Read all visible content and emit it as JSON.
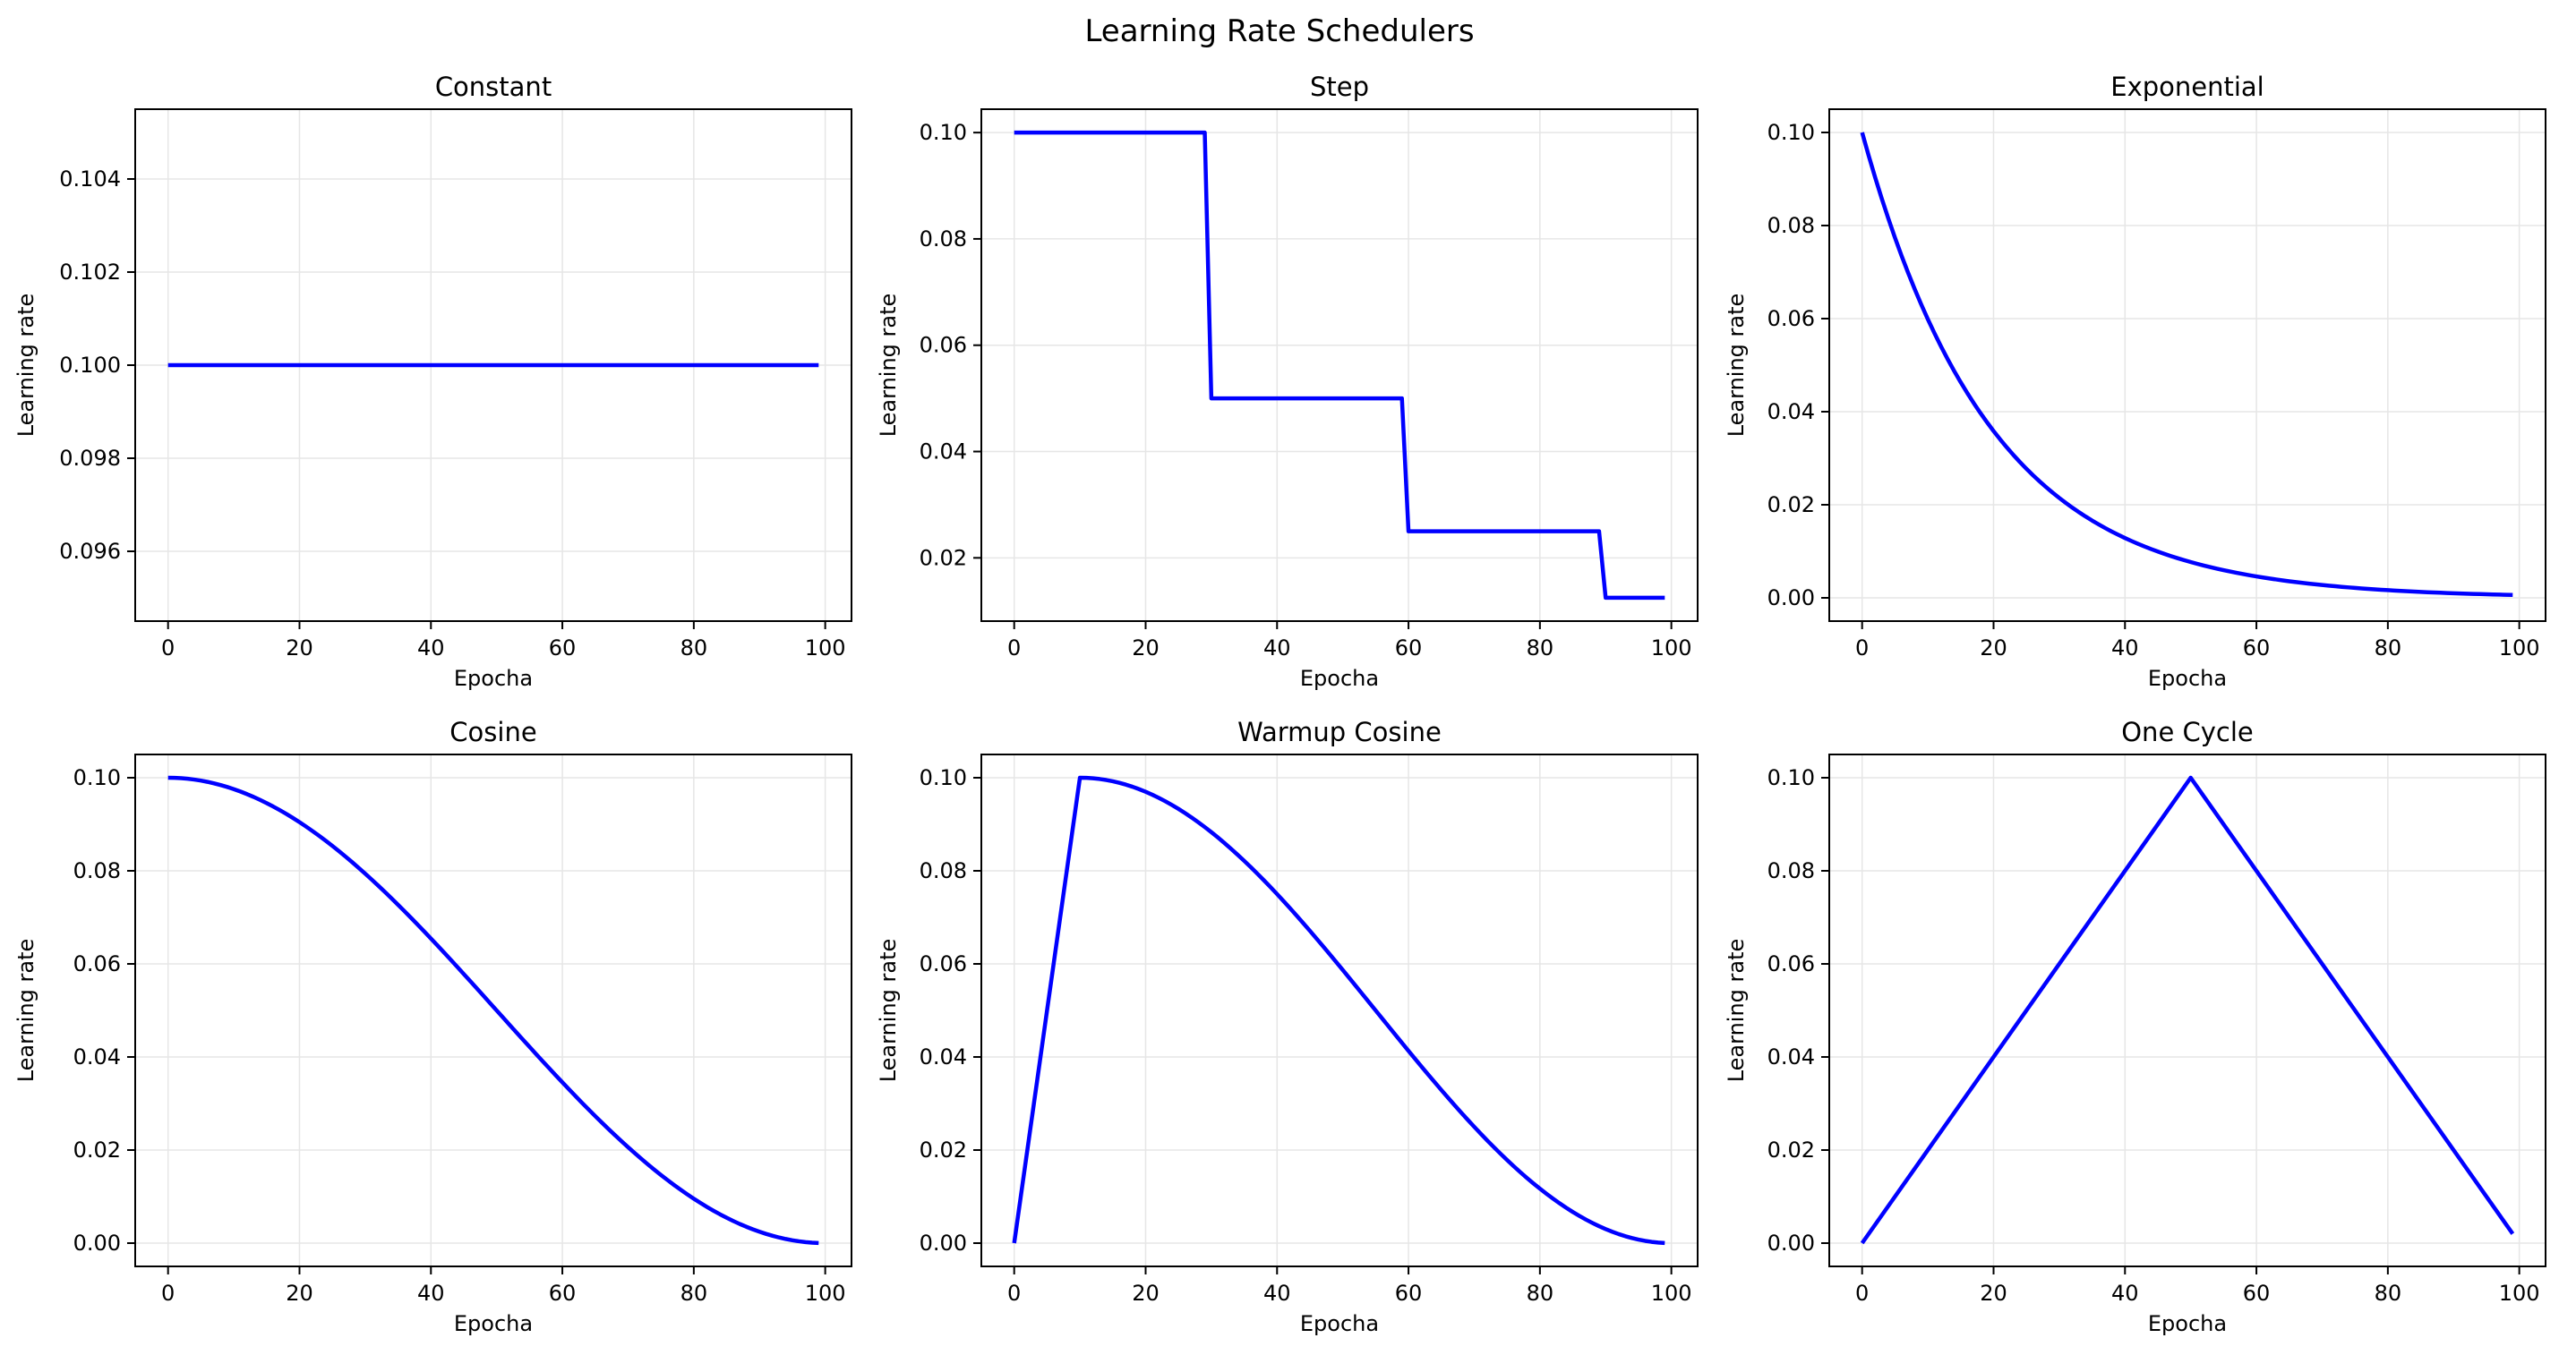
{
  "title": "Learning Rate Schedulers",
  "colors": {
    "line": "#0000ff",
    "grid": "#e6e6e6",
    "axis": "#000000",
    "background": "#ffffff"
  },
  "chart_data": [
    {
      "type": "line",
      "title": "Constant",
      "xlabel": "Epocha",
      "ylabel": "Learning rate",
      "xlim": [
        -5,
        104
      ],
      "ylim": [
        0.0945,
        0.1055
      ],
      "xticks": [
        0,
        20,
        40,
        60,
        80,
        100
      ],
      "xtick_labels": [
        "0",
        "20",
        "40",
        "60",
        "80",
        "100"
      ],
      "yticks": [
        0.096,
        0.098,
        0.1,
        0.102,
        0.104
      ],
      "ytick_labels": [
        "0.096",
        "0.098",
        "0.100",
        "0.102",
        "0.104"
      ],
      "grid": true,
      "series": [
        {
          "name": "Constant",
          "kind": "constant",
          "params": {
            "base_lr": 0.1
          },
          "x": [
            0,
            99
          ],
          "y": [
            0.1,
            0.1
          ]
        }
      ]
    },
    {
      "type": "line",
      "title": "Step",
      "xlabel": "Epocha",
      "ylabel": "Learning rate",
      "xlim": [
        -5,
        104
      ],
      "ylim": [
        0.0081,
        0.1044
      ],
      "xticks": [
        0,
        20,
        40,
        60,
        80,
        100
      ],
      "xtick_labels": [
        "0",
        "20",
        "40",
        "60",
        "80",
        "100"
      ],
      "yticks": [
        0.02,
        0.04,
        0.06,
        0.08,
        0.1
      ],
      "ytick_labels": [
        "0.02",
        "0.04",
        "0.06",
        "0.08",
        "0.10"
      ],
      "grid": true,
      "series": [
        {
          "name": "Step",
          "kind": "step",
          "params": {
            "base_lr": 0.1,
            "step_size": 30,
            "gamma": 0.5
          },
          "x": [
            0,
            29,
            30,
            59,
            60,
            89,
            90,
            99
          ],
          "y": [
            0.1,
            0.1,
            0.05,
            0.05,
            0.025,
            0.025,
            0.0125,
            0.0125
          ]
        }
      ]
    },
    {
      "type": "line",
      "title": "Exponential",
      "xlabel": "Epocha",
      "ylabel": "Learning rate",
      "xlim": [
        -5,
        104
      ],
      "ylim": [
        -0.005,
        0.105
      ],
      "xticks": [
        0,
        20,
        40,
        60,
        80,
        100
      ],
      "xtick_labels": [
        "0",
        "20",
        "40",
        "60",
        "80",
        "100"
      ],
      "yticks": [
        0,
        0.02,
        0.04,
        0.06,
        0.08,
        0.1
      ],
      "ytick_labels": [
        "0.00",
        "0.02",
        "0.04",
        "0.06",
        "0.08",
        "0.10"
      ],
      "grid": true,
      "series": [
        {
          "name": "Exponential",
          "kind": "exponential",
          "params": {
            "base_lr": 0.1,
            "gamma": 0.95,
            "epochs": 100
          }
        }
      ]
    },
    {
      "type": "line",
      "title": "Cosine",
      "xlabel": "Epocha",
      "ylabel": "Learning rate",
      "xlim": [
        -5,
        104
      ],
      "ylim": [
        -0.005,
        0.105
      ],
      "xticks": [
        0,
        20,
        40,
        60,
        80,
        100
      ],
      "xtick_labels": [
        "0",
        "20",
        "40",
        "60",
        "80",
        "100"
      ],
      "yticks": [
        0,
        0.02,
        0.04,
        0.06,
        0.08,
        0.1
      ],
      "ytick_labels": [
        "0.00",
        "0.02",
        "0.04",
        "0.06",
        "0.08",
        "0.10"
      ],
      "grid": true,
      "series": [
        {
          "name": "Cosine",
          "kind": "cosine",
          "params": {
            "base_lr": 0.1,
            "period": 100,
            "epochs": 100
          }
        }
      ]
    },
    {
      "type": "line",
      "title": "Warmup Cosine",
      "xlabel": "Epocha",
      "ylabel": "Learning rate",
      "xlim": [
        -5,
        104
      ],
      "ylim": [
        -0.005,
        0.105
      ],
      "xticks": [
        0,
        20,
        40,
        60,
        80,
        100
      ],
      "xtick_labels": [
        "0",
        "20",
        "40",
        "60",
        "80",
        "100"
      ],
      "yticks": [
        0,
        0.02,
        0.04,
        0.06,
        0.08,
        0.1
      ],
      "ytick_labels": [
        "0.00",
        "0.02",
        "0.04",
        "0.06",
        "0.08",
        "0.10"
      ],
      "grid": true,
      "series": [
        {
          "name": "Warmup Cosine",
          "kind": "warmup_cosine",
          "params": {
            "base_lr": 0.1,
            "warmup": 10,
            "period": 90,
            "epochs": 100
          }
        }
      ]
    },
    {
      "type": "line",
      "title": "One Cycle",
      "xlabel": "Epocha",
      "ylabel": "Learning rate",
      "xlim": [
        -5,
        104
      ],
      "ylim": [
        -0.005,
        0.105
      ],
      "xticks": [
        0,
        20,
        40,
        60,
        80,
        100
      ],
      "xtick_labels": [
        "0",
        "20",
        "40",
        "60",
        "80",
        "100"
      ],
      "yticks": [
        0,
        0.02,
        0.04,
        0.06,
        0.08,
        0.1
      ],
      "ytick_labels": [
        "0.00",
        "0.02",
        "0.04",
        "0.06",
        "0.08",
        "0.10"
      ],
      "grid": true,
      "series": [
        {
          "name": "One Cycle",
          "kind": "piecewise",
          "x": [
            0,
            50,
            99
          ],
          "y": [
            0,
            0.1,
            0.002
          ]
        }
      ]
    }
  ]
}
